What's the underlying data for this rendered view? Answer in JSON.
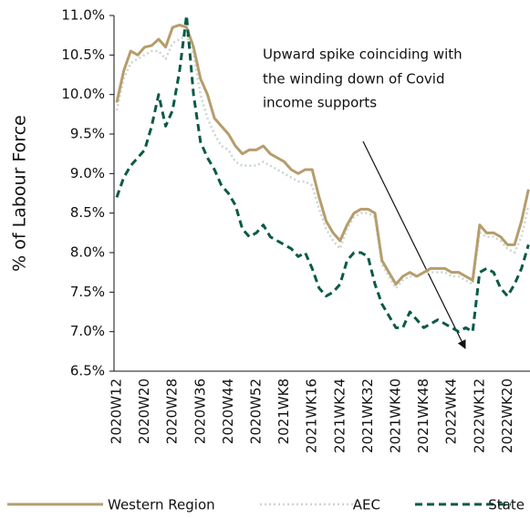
{
  "chart_data": {
    "type": "line",
    "ylabel": "% of Labour Force",
    "annotation_lines": [
      "Upward spike coinciding with",
      "the winding down of Covid",
      "income supports"
    ],
    "categories": [
      "2020W12",
      null,
      null,
      null,
      "2020W20",
      null,
      null,
      null,
      "2020W28",
      null,
      null,
      null,
      "2020W36",
      null,
      null,
      null,
      "2020W44",
      null,
      null,
      null,
      "2020W52",
      null,
      null,
      null,
      "2021WK8",
      null,
      null,
      null,
      "2021WK16",
      null,
      null,
      null,
      "2021WK24",
      null,
      null,
      null,
      "2021WK32",
      null,
      null,
      null,
      "2021WK40",
      null,
      null,
      null,
      "2021WK48",
      null,
      null,
      null,
      "2022WK4",
      null,
      null,
      null,
      "2022WK12",
      null,
      null,
      null,
      "2022WK20",
      null,
      null,
      null
    ],
    "series": [
      {
        "name": "Western Region",
        "color": "#b59d6c",
        "dash": "solid",
        "values": [
          9.9,
          10.3,
          10.55,
          10.5,
          10.6,
          10.62,
          10.7,
          10.6,
          10.85,
          10.88,
          10.85,
          10.6,
          10.2,
          10.0,
          9.7,
          9.6,
          9.5,
          9.35,
          9.25,
          9.3,
          9.3,
          9.35,
          9.25,
          9.2,
          9.15,
          9.05,
          9.0,
          9.05,
          9.05,
          8.7,
          8.4,
          8.25,
          8.15,
          8.35,
          8.5,
          8.55,
          8.55,
          8.5,
          7.9,
          7.75,
          7.6,
          7.7,
          7.75,
          7.7,
          7.75,
          7.8,
          7.8,
          7.8,
          7.75,
          7.75,
          7.7,
          7.65,
          8.35,
          8.25,
          8.25,
          8.2,
          8.1,
          8.1,
          8.4,
          8.8
        ]
      },
      {
        "name": "AEC",
        "color": "#c9d6cf",
        "dash": "dotted",
        "values": [
          9.8,
          10.2,
          10.4,
          10.45,
          10.5,
          10.55,
          10.55,
          10.45,
          10.65,
          10.7,
          10.75,
          10.5,
          10.0,
          9.7,
          9.5,
          9.35,
          9.3,
          9.15,
          9.1,
          9.1,
          9.1,
          9.15,
          9.1,
          9.05,
          9.0,
          8.95,
          8.9,
          8.9,
          8.85,
          8.55,
          8.3,
          8.15,
          8.05,
          8.3,
          8.45,
          8.5,
          8.5,
          8.45,
          7.85,
          7.7,
          7.55,
          7.65,
          7.7,
          7.7,
          7.75,
          7.75,
          7.75,
          7.75,
          7.7,
          7.7,
          7.65,
          7.6,
          8.25,
          8.2,
          8.2,
          8.15,
          8.05,
          8.0,
          8.2,
          8.6
        ]
      },
      {
        "name": "State",
        "color": "#0b5a47",
        "dash": "dashed",
        "values": [
          8.7,
          8.95,
          9.1,
          9.2,
          9.3,
          9.6,
          10.0,
          9.6,
          9.8,
          10.3,
          11.0,
          10.0,
          9.4,
          9.2,
          9.05,
          8.85,
          8.75,
          8.6,
          8.3,
          8.2,
          8.25,
          8.35,
          8.2,
          8.15,
          8.1,
          8.05,
          7.95,
          8.0,
          7.8,
          7.55,
          7.45,
          7.5,
          7.6,
          7.9,
          8.0,
          8.0,
          7.95,
          7.6,
          7.35,
          7.2,
          7.05,
          7.05,
          7.25,
          7.15,
          7.05,
          7.1,
          7.15,
          7.1,
          7.05,
          7.0,
          7.05,
          7.0,
          7.75,
          7.8,
          7.75,
          7.55,
          7.45,
          7.6,
          7.8,
          8.1
        ]
      }
    ],
    "ylim": [
      6.5,
      11
    ],
    "yticks": [
      {
        "value": 6.5,
        "label": "6.5%"
      },
      {
        "value": 7,
        "label": "7.0%"
      },
      {
        "value": 7.5,
        "label": "7.5%"
      },
      {
        "value": 8,
        "label": "8.0%"
      },
      {
        "value": 8.5,
        "label": "8.5%"
      },
      {
        "value": 9,
        "label": "9.0%"
      },
      {
        "value": 9.5,
        "label": "9.5%"
      },
      {
        "value": 10,
        "label": "10.0%"
      },
      {
        "value": 10.5,
        "label": "10.5%"
      },
      {
        "value": 11,
        "label": "11.0%"
      }
    ],
    "grid": false,
    "legend": "bottom"
  }
}
